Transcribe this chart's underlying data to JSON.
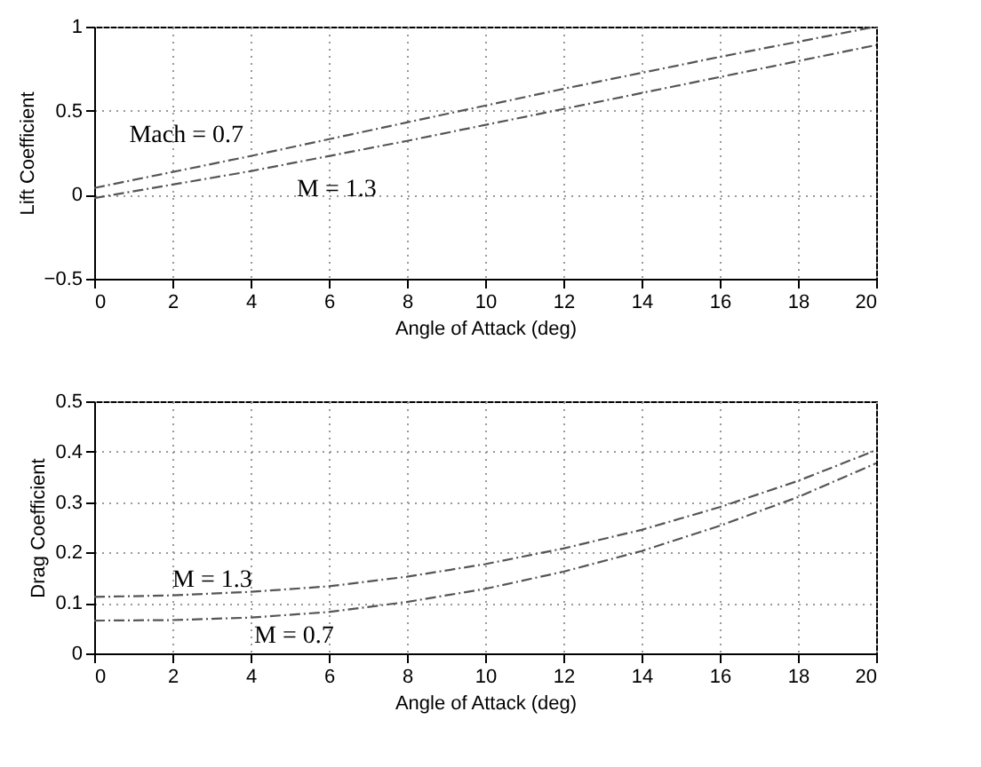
{
  "chart_data": [
    {
      "type": "line",
      "xlabel": "Angle of Attack (deg)",
      "ylabel": "Lift Coefficient",
      "x": [
        0,
        4,
        8,
        12,
        16,
        20
      ],
      "series": [
        {
          "name": "Mach = 0.7",
          "color": "#555555",
          "values": [
            0.04,
            0.23,
            0.43,
            0.63,
            0.82,
            1.0
          ]
        },
        {
          "name": "M = 1.3",
          "color": "#555555",
          "values": [
            -0.02,
            0.14,
            0.32,
            0.51,
            0.7,
            0.89
          ]
        }
      ],
      "xlim": [
        0,
        20
      ],
      "xticks": [
        0,
        2,
        4,
        6,
        8,
        10,
        12,
        14,
        16,
        18,
        20
      ],
      "ylim": [
        -0.5,
        1
      ],
      "yticks": [
        -0.5,
        0,
        0.5,
        1
      ],
      "grid": true,
      "line_style": "dashed",
      "marker": "none"
    },
    {
      "type": "line",
      "xlabel": "Angle of Attack (deg)",
      "ylabel": "Drag Coefficient",
      "x": [
        0,
        2,
        4,
        6,
        8,
        10,
        12,
        14,
        16,
        18,
        20
      ],
      "series": [
        {
          "name": "M = 1.3",
          "color": "#555555",
          "values": [
            0.112,
            0.115,
            0.122,
            0.133,
            0.152,
            0.177,
            0.208,
            0.245,
            0.29,
            0.342,
            0.403
          ]
        },
        {
          "name": "M = 0.7",
          "color": "#555555",
          "values": [
            0.065,
            0.066,
            0.071,
            0.082,
            0.102,
            0.128,
            0.162,
            0.203,
            0.253,
            0.31,
            0.377
          ]
        }
      ],
      "xlim": [
        0,
        20
      ],
      "xticks": [
        0,
        2,
        4,
        6,
        8,
        10,
        12,
        14,
        16,
        18,
        20
      ],
      "ylim": [
        0,
        0.5
      ],
      "yticks": [
        0,
        0.1,
        0.2,
        0.3,
        0.4,
        0.5
      ],
      "grid": true,
      "line_style": "dashed",
      "marker": "none"
    }
  ]
}
